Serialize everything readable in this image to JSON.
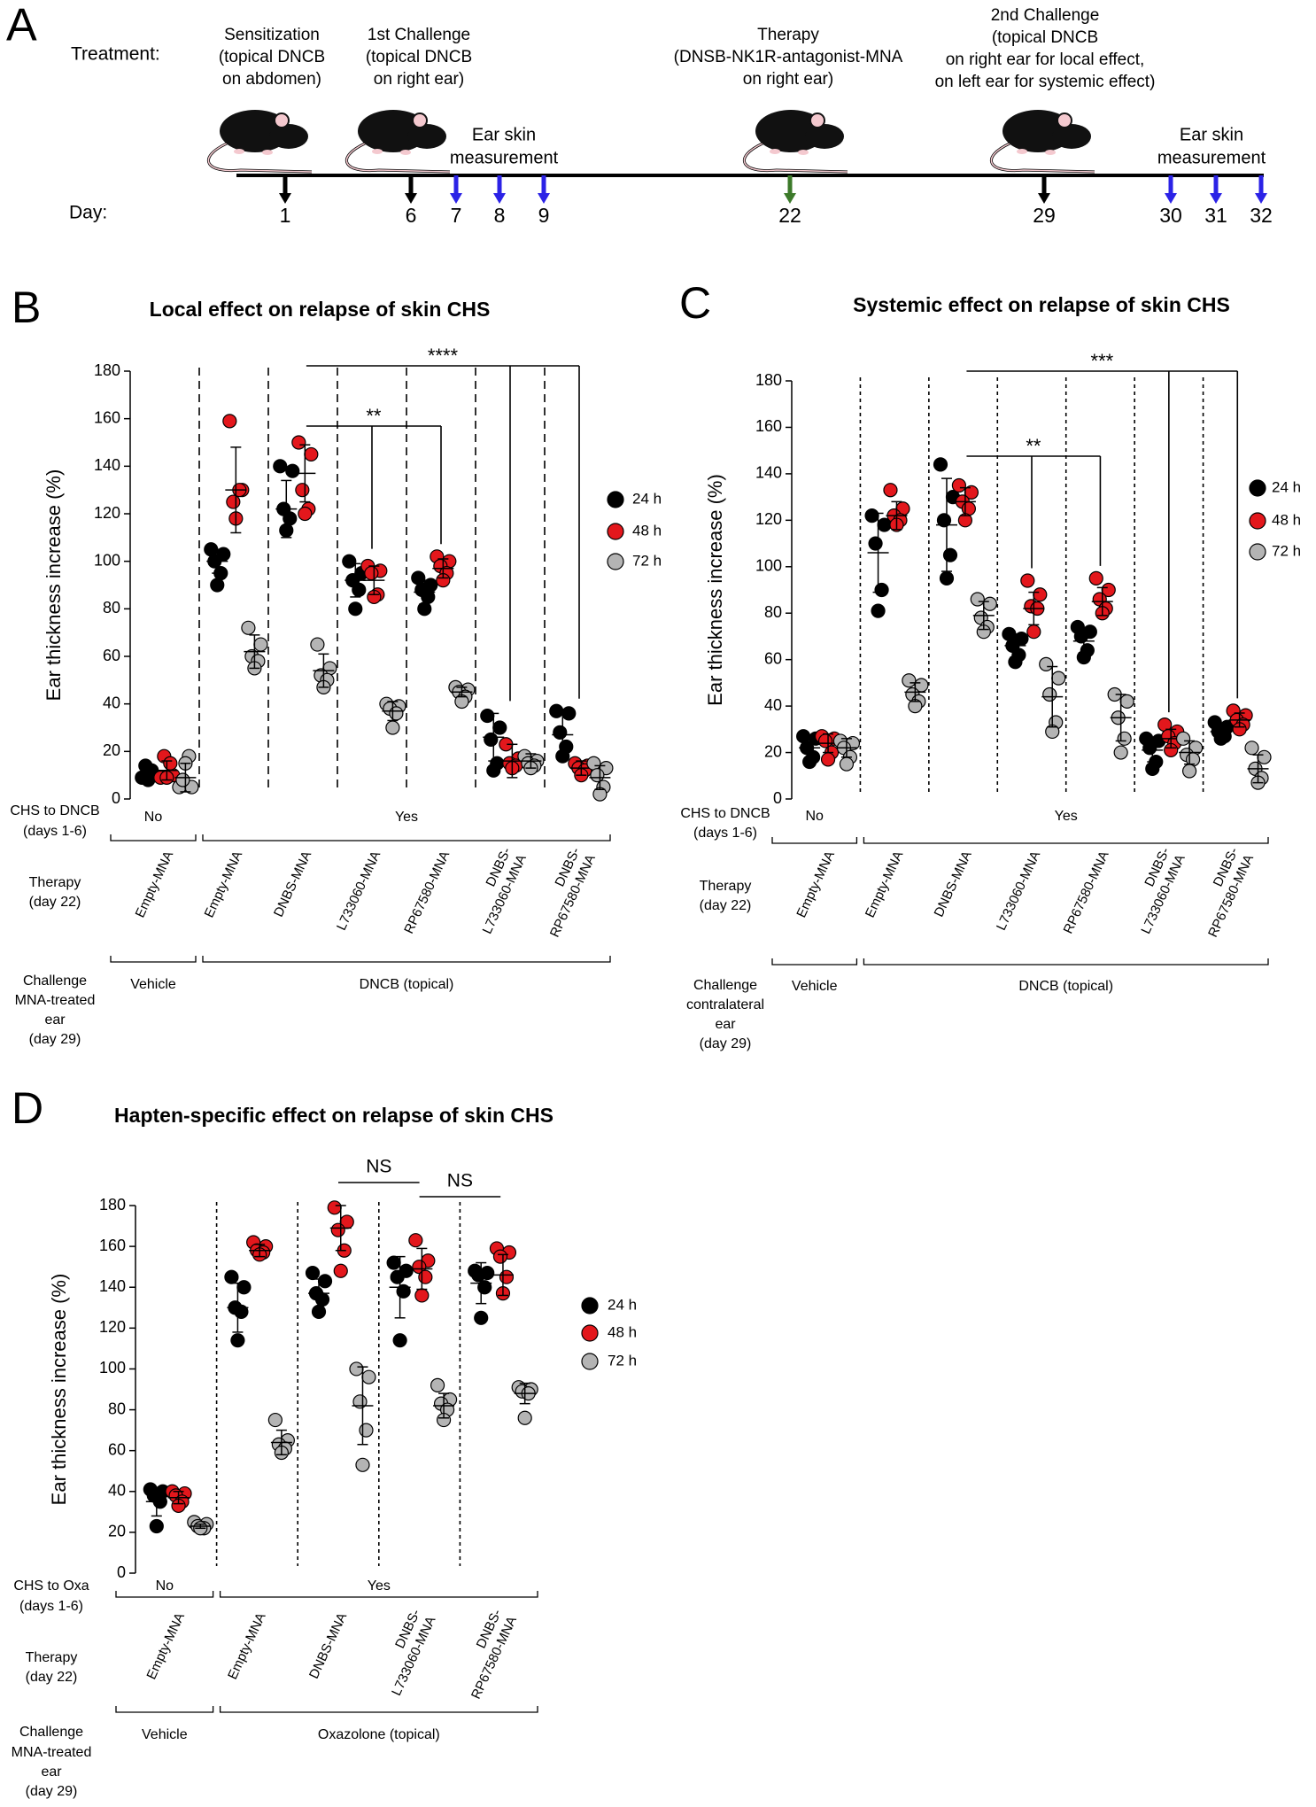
{
  "panel_a": {
    "label": "A",
    "treatment_label": "Treatment:",
    "day_label": "Day:",
    "events": [
      {
        "lines": [
          "Sensitization",
          "(topical DNCB",
          "on abdomen)"
        ],
        "color": "#000000"
      },
      {
        "lines": [
          "1st Challenge",
          "(topical DNCB",
          "on right ear)"
        ],
        "color": "#000000"
      },
      {
        "lines": [
          "Therapy",
          "(DNSB-NK1R-antagonist-MNA",
          "on right ear)"
        ],
        "color": "#3c7a2a"
      },
      {
        "lines": [
          "2nd Challenge",
          "(topical DNCB",
          "on right ear for local effect,",
          "on left ear for systemic effect)"
        ],
        "color": "#000000"
      }
    ],
    "measurements": [
      {
        "lines": [
          "Ear skin",
          "measurement"
        ],
        "color": "#2b22e6"
      },
      {
        "lines": [
          "Ear skin",
          "measurement"
        ],
        "color": "#2b22e6"
      }
    ],
    "days": [
      {
        "day": 1,
        "color": "#000000"
      },
      {
        "day": 6,
        "color": "#000000"
      },
      {
        "day": 7,
        "color": "#2b22e6"
      },
      {
        "day": 8,
        "color": "#2b22e6"
      },
      {
        "day": 9,
        "color": "#2b22e6"
      },
      {
        "day": 22,
        "color": "#3c7a2a"
      },
      {
        "day": 29,
        "color": "#000000"
      },
      {
        "day": 30,
        "color": "#2b22e6"
      },
      {
        "day": 31,
        "color": "#2b22e6"
      },
      {
        "day": 32,
        "color": "#2b22e6"
      }
    ]
  },
  "chart_data": [
    {
      "type": "dot",
      "panel_label": "B",
      "title": "Local effect on relapse of skin CHS",
      "y_label": "Ear thickness increase (%)",
      "ylim": [
        0,
        180
      ],
      "yticks": [
        0,
        20,
        40,
        60,
        80,
        100,
        120,
        140,
        160,
        180
      ],
      "legend": "right",
      "categories": [
        [
          "Empty-MNA"
        ],
        [
          "Empty-MNA"
        ],
        [
          "DNBS-MNA"
        ],
        [
          "L733060-MNA"
        ],
        [
          "RP67580-MNA"
        ],
        [
          "DNBS-",
          "L733060-MNA"
        ],
        [
          "DNBS-",
          "RP67580-MNA"
        ]
      ],
      "series": [
        {
          "name": "24 h",
          "color": "#000000",
          "values": [
            [
              9,
              10,
              14,
              12,
              8
            ],
            [
              105,
              103,
              100,
              95,
              90
            ],
            [
              140,
              138,
              122,
              118,
              113
            ],
            [
              100,
              95,
              92,
              88,
              80
            ],
            [
              93,
              90,
              88,
              85,
              80
            ],
            [
              35,
              30,
              25,
              15,
              12
            ],
            [
              37,
              36,
              28,
              22,
              18
            ]
          ],
          "mean": [
            11,
            100,
            122,
            92,
            87,
            26,
            27
          ],
          "sd": [
            3,
            5,
            12,
            7,
            5,
            10,
            9
          ]
        },
        {
          "name": "48 h",
          "color": "#e3171c",
          "values": [
            [
              9,
              10,
              18,
              15,
              9
            ],
            [
              159,
              130,
              125,
              130,
              118
            ],
            [
              150,
              145,
              130,
              122,
              120
            ],
            [
              98,
              96,
              95,
              86,
              85
            ],
            [
              102,
              100,
              98,
              95,
              92
            ],
            [
              23,
              17,
              15,
              14,
              13
            ],
            [
              15,
              14,
              13,
              12,
              10
            ]
          ],
          "mean": [
            12,
            130,
            137,
            92,
            97,
            16,
            13
          ],
          "sd": [
            4,
            18,
            12,
            6,
            4,
            7,
            3
          ]
        },
        {
          "name": "72 h",
          "color": "#b4b4b4",
          "values": [
            [
              5,
              5,
              8,
              18,
              15
            ],
            [
              72,
              65,
              60,
              58,
              55
            ],
            [
              65,
              55,
              52,
              50,
              47
            ],
            [
              40,
              39,
              38,
              36,
              30
            ],
            [
              47,
              46,
              45,
              43,
              41
            ],
            [
              18,
              16,
              15,
              14,
              13
            ],
            [
              15,
              13,
              10,
              5,
              2
            ]
          ],
          "mean": [
            9,
            62,
            54,
            37,
            45,
            16,
            9
          ],
          "sd": [
            6,
            7,
            7,
            4,
            2,
            3,
            5
          ]
        }
      ],
      "comparisons": [
        {
          "label": "****",
          "from": 2,
          "to": [
            5,
            6
          ]
        },
        {
          "label": "**",
          "from": 2,
          "to": [
            3,
            4
          ]
        }
      ],
      "rows": [
        {
          "label": [
            "CHS to DNCB",
            "(days 1-6)"
          ],
          "groups": [
            {
              "text": "No",
              "span": [
                0,
                0
              ]
            },
            {
              "text": "Yes",
              "span": [
                1,
                6
              ]
            }
          ]
        },
        {
          "label": [
            "Therapy",
            "(day 22)"
          ]
        },
        {
          "label": [
            "Challenge",
            "MNA-treated",
            "ear",
            "(day 29)"
          ],
          "groups": [
            {
              "text": "Vehicle",
              "span": [
                0,
                0
              ]
            },
            {
              "text": "DNCB (topical)",
              "span": [
                1,
                6
              ]
            }
          ]
        }
      ]
    },
    {
      "type": "dot",
      "panel_label": "C",
      "title": "Systemic effect on relapse of skin CHS",
      "y_label": "Ear thickness increase (%)",
      "ylim": [
        0,
        180
      ],
      "yticks": [
        0,
        20,
        40,
        60,
        80,
        100,
        120,
        140,
        160,
        180
      ],
      "legend": "right",
      "categories": [
        [
          "Empty-MNA"
        ],
        [
          "Empty-MNA"
        ],
        [
          "DNBS-MNA"
        ],
        [
          "L733060-MNA"
        ],
        [
          "RP67580-MNA"
        ],
        [
          "DNBS-",
          "L733060-MNA"
        ],
        [
          "DNBS-",
          "RP67580-MNA"
        ]
      ],
      "series": [
        {
          "name": "24 h",
          "color": "#000000",
          "values": [
            [
              27,
              26,
              22,
              18,
              16
            ],
            [
              122,
              118,
              110,
              90,
              81
            ],
            [
              144,
              130,
              120,
              105,
              95
            ],
            [
              71,
              69,
              66,
              62,
              59
            ],
            [
              74,
              72,
              70,
              64,
              61
            ],
            [
              26,
              25,
              22,
              16,
              13
            ],
            [
              33,
              31,
              29,
              27,
              26
            ]
          ],
          "mean": [
            22,
            106,
            118,
            66,
            68,
            21,
            29
          ],
          "sd": [
            5,
            17,
            20,
            5,
            5,
            5,
            3
          ]
        },
        {
          "name": "48 h",
          "color": "#e3171c",
          "values": [
            [
              27,
              26,
              25,
              20,
              17
            ],
            [
              133,
              125,
              122,
              120,
              118
            ],
            [
              135,
              132,
              128,
              125,
              120
            ],
            [
              94,
              88,
              83,
              82,
              72
            ],
            [
              95,
              90,
              86,
              82,
              80
            ],
            [
              32,
              29,
              27,
              24,
              21
            ],
            [
              38,
              36,
              34,
              32,
              30
            ]
          ],
          "mean": [
            24,
            122,
            128,
            82,
            85,
            26,
            34
          ],
          "sd": [
            4,
            6,
            6,
            7,
            6,
            4,
            3
          ]
        },
        {
          "name": "72 h",
          "color": "#b4b4b4",
          "values": [
            [
              25,
              24,
              22,
              18,
              15
            ],
            [
              51,
              49,
              45,
              42,
              40
            ],
            [
              86,
              84,
              78,
              74,
              72
            ],
            [
              58,
              52,
              45,
              33,
              29
            ],
            [
              45,
              42,
              35,
              26,
              20
            ],
            [
              26,
              22,
              19,
              17,
              12
            ],
            [
              22,
              18,
              13,
              9,
              7
            ]
          ],
          "mean": [
            22,
            46,
            79,
            44,
            35,
            20,
            13
          ],
          "sd": [
            4,
            4,
            6,
            13,
            10,
            5,
            6
          ]
        }
      ],
      "comparisons": [
        {
          "label": "***",
          "from": 2,
          "to": [
            5,
            6
          ]
        },
        {
          "label": "**",
          "from": 2,
          "to": [
            3,
            4
          ]
        }
      ],
      "rows": [
        {
          "label": [
            "CHS to DNCB",
            "(days 1-6)"
          ],
          "groups": [
            {
              "text": "No",
              "span": [
                0,
                0
              ]
            },
            {
              "text": "Yes",
              "span": [
                1,
                6
              ]
            }
          ]
        },
        {
          "label": [
            "Therapy",
            "(day 22)"
          ]
        },
        {
          "label": [
            "Challenge",
            "contralateral",
            "ear",
            "(day 29)"
          ],
          "groups": [
            {
              "text": "Vehicle",
              "span": [
                0,
                0
              ]
            },
            {
              "text": "DNCB (topical)",
              "span": [
                1,
                6
              ]
            }
          ]
        }
      ]
    },
    {
      "type": "dot",
      "panel_label": "D",
      "title": "Hapten-specific effect on relapse of skin CHS",
      "y_label": "Ear thickness increase (%)",
      "ylim": [
        0,
        180
      ],
      "yticks": [
        0,
        20,
        40,
        60,
        80,
        100,
        120,
        140,
        160,
        180
      ],
      "legend": "right",
      "categories": [
        [
          "Empty-MNA"
        ],
        [
          "Empty-MNA"
        ],
        [
          "DNBS-MNA"
        ],
        [
          "DNBS-",
          "L733060-MNA"
        ],
        [
          "DNBS-",
          "RP67580-MNA"
        ]
      ],
      "series": [
        {
          "name": "24 h",
          "color": "#000000",
          "values": [
            [
              41,
              40,
              38,
              35,
              23
            ],
            [
              145,
              140,
              130,
              128,
              114
            ],
            [
              147,
              143,
              137,
              134,
              128
            ],
            [
              152,
              148,
              145,
              138,
              114
            ],
            [
              148,
              147,
              146,
              140,
              125
            ]
          ],
          "mean": [
            35,
            130,
            137,
            140,
            142
          ],
          "sd": [
            7,
            12,
            7,
            15,
            10
          ]
        },
        {
          "name": "48 h",
          "color": "#e3171c",
          "values": [
            [
              40,
              39,
              38,
              35,
              33
            ],
            [
              162,
              160,
              158,
              157,
              156
            ],
            [
              179,
              172,
              168,
              158,
              148
            ],
            [
              163,
              153,
              150,
              145,
              136
            ],
            [
              159,
              157,
              155,
              145,
              137
            ]
          ],
          "mean": [
            37,
            158,
            169,
            149,
            146
          ],
          "sd": [
            3,
            3,
            11,
            10,
            10
          ]
        },
        {
          "name": "72 h",
          "color": "#b4b4b4",
          "values": [
            [
              25,
              24,
              23,
              22,
              22
            ],
            [
              75,
              65,
              63,
              61,
              59
            ],
            [
              100,
              96,
              84,
              70,
              53
            ],
            [
              92,
              85,
              83,
              80,
              75
            ],
            [
              91,
              90,
              89,
              88,
              76
            ]
          ],
          "mean": [
            23,
            64,
            82,
            82,
            88
          ],
          "sd": [
            1,
            6,
            19,
            6,
            5
          ]
        }
      ],
      "comparisons": [
        {
          "label": "NS",
          "span": [
            2,
            3
          ]
        },
        {
          "label": "NS",
          "span": [
            3,
            4
          ]
        }
      ],
      "rows": [
        {
          "label": [
            "CHS to Oxa",
            "(days 1-6)"
          ],
          "groups": [
            {
              "text": "No",
              "span": [
                0,
                0
              ]
            },
            {
              "text": "Yes",
              "span": [
                1,
                4
              ]
            }
          ]
        },
        {
          "label": [
            "Therapy",
            "(day 22)"
          ]
        },
        {
          "label": [
            "Challenge",
            "MNA-treated",
            "ear",
            "(day 29)"
          ],
          "groups": [
            {
              "text": "Vehicle",
              "span": [
                0,
                0
              ]
            },
            {
              "text": "Oxazolone (topical)",
              "span": [
                1,
                4
              ]
            }
          ]
        }
      ]
    }
  ]
}
